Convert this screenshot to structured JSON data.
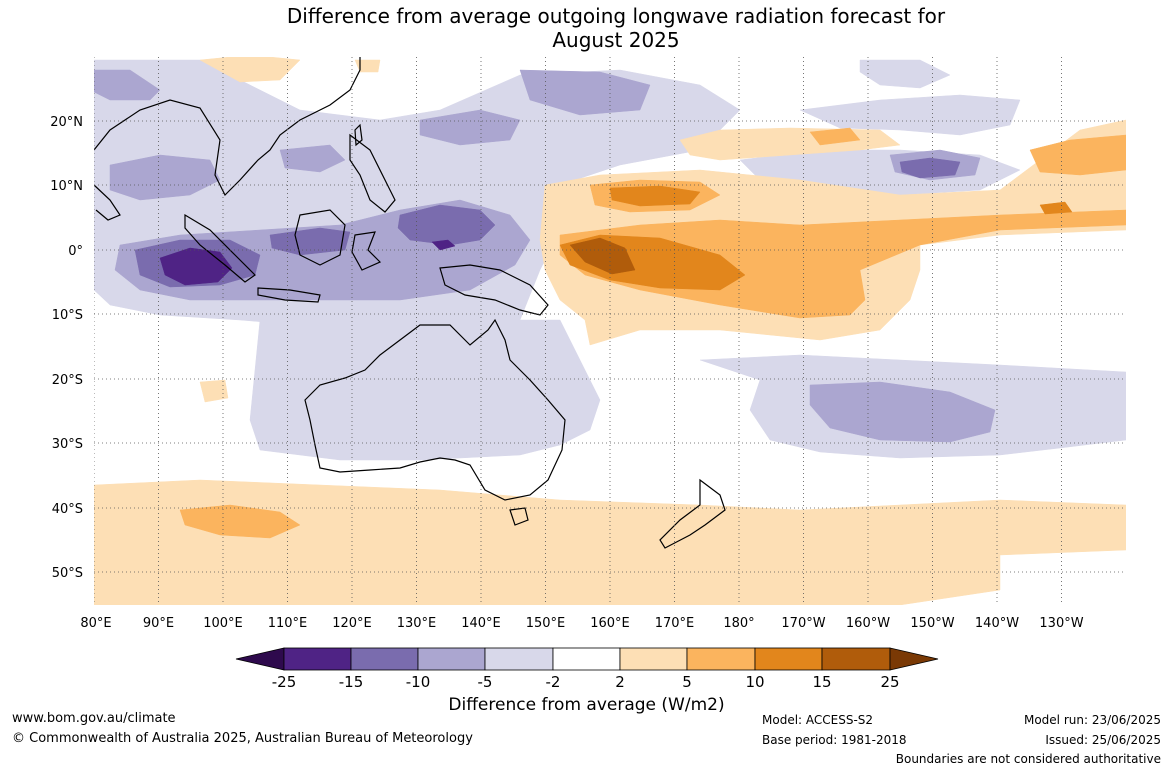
{
  "title": {
    "line1": "Difference from average outgoing longwave radiation forecast for",
    "line2": "August 2025"
  },
  "map": {
    "lat_labels": [
      "20°N",
      "10°N",
      "0°",
      "10°S",
      "20°S",
      "30°S",
      "40°S",
      "50°S"
    ],
    "lon_labels": [
      "80°E",
      "90°E",
      "100°E",
      "110°E",
      "120°E",
      "130°E",
      "140°E",
      "150°E",
      "160°E",
      "170°E",
      "180°",
      "170°W",
      "160°W",
      "150°W",
      "140°W",
      "130°W"
    ],
    "lat_range": [
      -55,
      30
    ],
    "lon_range": [
      80,
      240
    ]
  },
  "colorbar": {
    "ticks": [
      "-25",
      "-15",
      "-10",
      "-5",
      "-2",
      "2",
      "5",
      "10",
      "15",
      "25"
    ],
    "colors": {
      "neg25": "#2e0a4d",
      "neg15": "#4f2385",
      "neg10": "#7a6cae",
      "neg5": "#aba6d0",
      "neg2": "#d8d8ea",
      "zero": "#ffffff",
      "pos2": "#fddfb5",
      "pos5": "#fbb45e",
      "pos10": "#e2861c",
      "pos15": "#b05c0b",
      "pos25": "#7a3905"
    },
    "label": "Difference from average (W/m2)"
  },
  "footer": {
    "url": "www.bom.gov.au/climate",
    "copyright": "© Commonwealth of Australia 2025, Australian Bureau of Meteorology",
    "model": "Model: ACCESS-S2",
    "base_period": "Base period: 1981-2018",
    "model_run": "Model run: 23/06/2025",
    "issued": "Issued: 25/06/2025",
    "disclaimer": "Boundaries are not considered authoritative"
  }
}
